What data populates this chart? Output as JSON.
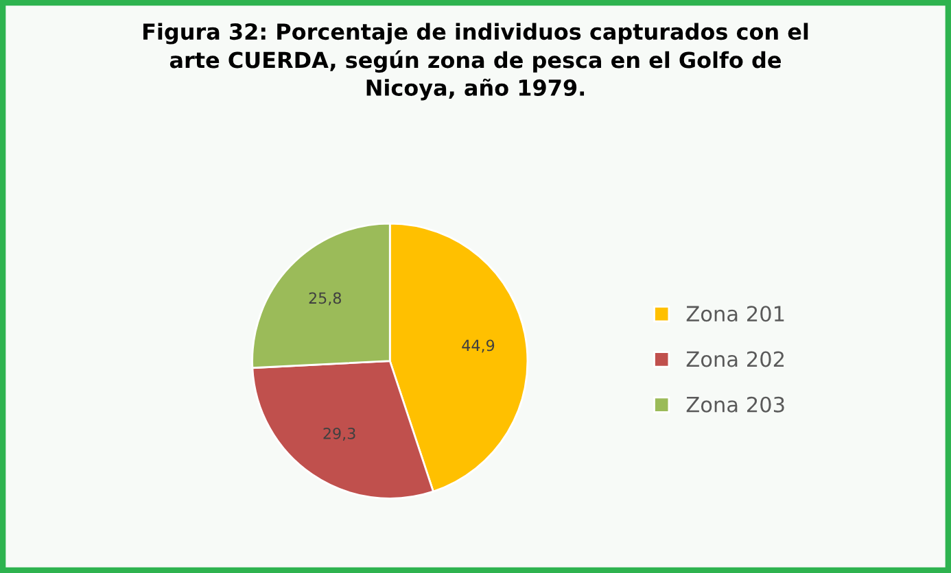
{
  "chart_data": {
    "type": "pie",
    "title": "Figura 32: Porcentaje de individuos capturados con el\narte CUERDA, según zona de pesca en el Golfo de\nNicoya, año 1979.",
    "categories": [
      "Zona 201",
      "Zona 202",
      "Zona 203"
    ],
    "values": [
      44.9,
      29.3,
      25.8
    ],
    "value_labels": [
      "44,9",
      "29,3",
      "25,8"
    ],
    "colors": [
      "#ffc000",
      "#c0504d",
      "#9bbb59"
    ],
    "legend": "right"
  }
}
